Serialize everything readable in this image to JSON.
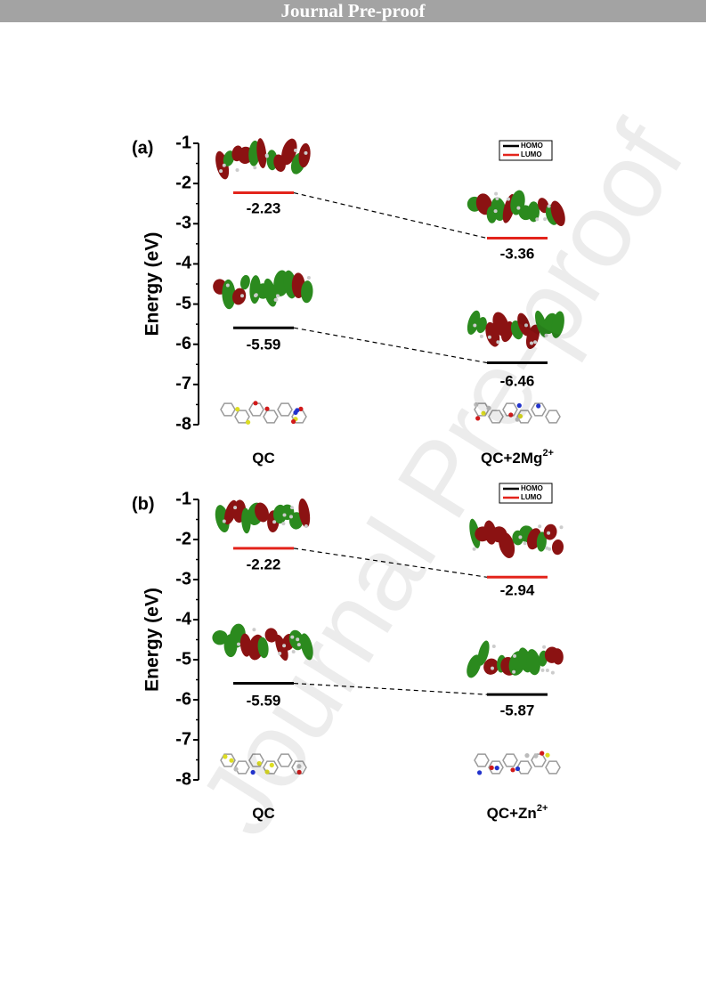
{
  "banner": {
    "text": "Journal Pre-proof"
  },
  "watermark": {
    "text": "Journal Pre-proof"
  },
  "colors": {
    "homo": "#000000",
    "lumo": "#e3241b",
    "orbital_pos": "#2b8a1e",
    "orbital_neg": "#8b1212",
    "banner_bg": "#a3a3a3"
  },
  "chart_data": [
    {
      "type": "energy-level-diagram",
      "panel_label": "(a)",
      "ylabel": "Energy (eV)",
      "ylim": [
        -8,
        -1
      ],
      "yticks": [
        "-1",
        "-2",
        "-3",
        "-4",
        "-5",
        "-6",
        "-7",
        "-8"
      ],
      "categories": [
        "QC",
        "QC+2Mg2+"
      ],
      "category_labels": [
        {
          "main": "QC",
          "sup": ""
        },
        {
          "main": "QC+2Mg",
          "sup": "2+"
        }
      ],
      "legend": [
        "HOMO",
        "LUMO"
      ],
      "legend_placement": "top-right",
      "series": [
        {
          "name": "HOMO",
          "values": [
            -5.59,
            -6.46
          ],
          "labels": [
            "-5.59",
            "-6.46"
          ]
        },
        {
          "name": "LUMO",
          "values": [
            -2.23,
            -3.36
          ],
          "labels": [
            "-2.23",
            "-3.36"
          ]
        }
      ]
    },
    {
      "type": "energy-level-diagram",
      "panel_label": "(b)",
      "ylabel": "Energy (eV)",
      "ylim": [
        -8,
        -1
      ],
      "yticks": [
        "-1",
        "-2",
        "-3",
        "-4",
        "-5",
        "-6",
        "-7",
        "-8"
      ],
      "categories": [
        "QC",
        "QC+Zn2+"
      ],
      "category_labels": [
        {
          "main": "QC",
          "sup": ""
        },
        {
          "main": "QC+Zn",
          "sup": "2+"
        }
      ],
      "legend": [
        "HOMO",
        "LUMO"
      ],
      "legend_placement": "top-right",
      "series": [
        {
          "name": "HOMO",
          "values": [
            -5.59,
            -5.87
          ],
          "labels": [
            "-5.59",
            "-5.87"
          ]
        },
        {
          "name": "LUMO",
          "values": [
            -2.22,
            -2.94
          ],
          "labels": [
            "-2.22",
            "-2.94"
          ]
        }
      ]
    }
  ]
}
